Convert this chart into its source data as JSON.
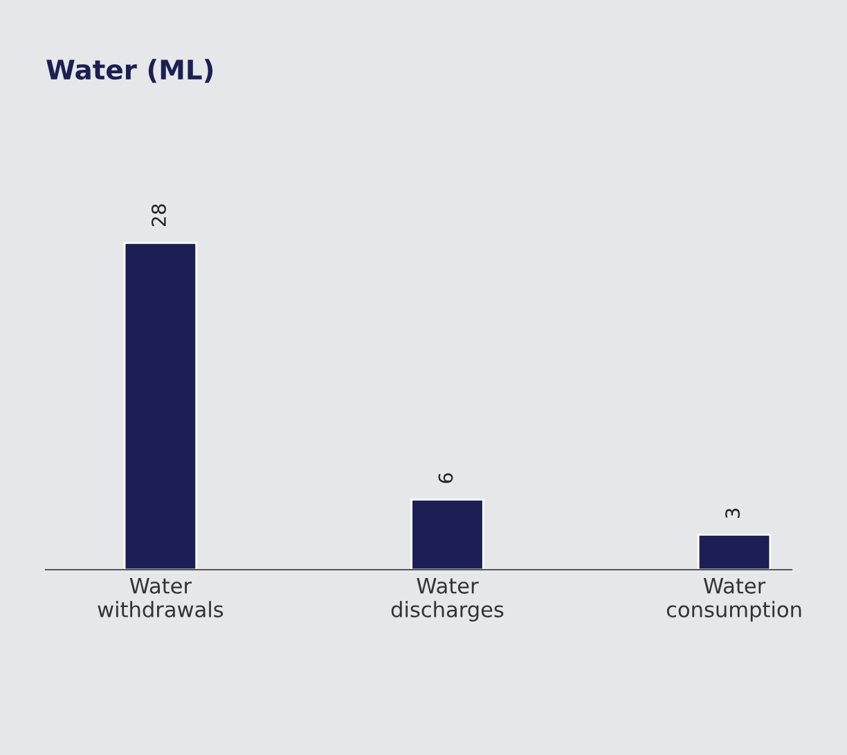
{
  "chart_data": {
    "type": "bar",
    "title": "Water (ML)",
    "categories": [
      "Water\nwithdrawals",
      "Water\ndischarges",
      "Water\nconsumption"
    ],
    "values": [
      28,
      6,
      3
    ],
    "color": "#1b1f54",
    "data_labels": true,
    "grid": false,
    "legend": false
  }
}
